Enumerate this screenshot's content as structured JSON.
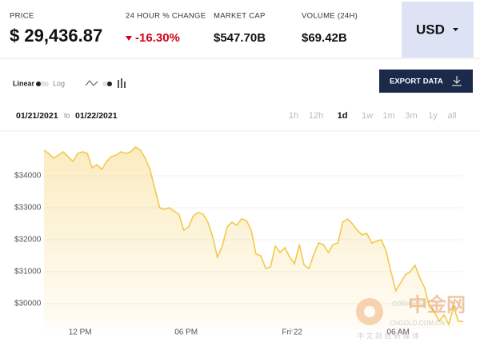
{
  "header": {
    "price_label": "PRICE",
    "price": "$ 29,436.87",
    "change_label": "24 HOUR % CHANGE",
    "change": "-16.30%",
    "market_cap_label": "MARKET CAP",
    "market_cap": "$547.70B",
    "volume_label": "VOLUME (24H)",
    "volume": "$69.42B",
    "currency": "USD"
  },
  "controls": {
    "scale_linear": "Linear",
    "scale_log": "Log",
    "export": "EXPORT DATA",
    "date_from": "01/21/2021",
    "date_to_word": "to",
    "date_to": "01/22/2021",
    "ranges": [
      "1h",
      "12h",
      "1d",
      "1w",
      "1m",
      "3m",
      "1y",
      "all"
    ],
    "active_range": 2
  },
  "watermark": {
    "brand": "中金网",
    "site": "CNGOLD.COM.CN",
    "slogan": "中 文 财 经 新 媒 体",
    "source": "coindesk"
  },
  "chart_data": {
    "type": "area",
    "color": "#f2c94c",
    "values": [
      34800,
      34700,
      34550,
      34650,
      34750,
      34600,
      34450,
      34700,
      34750,
      34700,
      34250,
      34350,
      34200,
      34450,
      34600,
      34650,
      34750,
      34700,
      34750,
      34900,
      34800,
      34550,
      34200,
      33600,
      33000,
      32950,
      33000,
      32900,
      32800,
      32300,
      32400,
      32750,
      32850,
      32800,
      32550,
      32100,
      31450,
      31800,
      32400,
      32550,
      32450,
      32650,
      32600,
      32300,
      31550,
      31500,
      31100,
      31150,
      31800,
      31600,
      31750,
      31450,
      31250,
      31850,
      31200,
      31100,
      31550,
      31900,
      31850,
      31600,
      31850,
      31900,
      32550,
      32650,
      32500,
      32300,
      32150,
      32200,
      31900,
      31950,
      32000,
      31650,
      31000,
      30400,
      30650,
      30900,
      31000,
      31200,
      30800,
      30500,
      29900,
      29750,
      29450,
      29650,
      29350,
      29900,
      29450,
      29436.87
    ],
    "xlim": [
      0,
      87
    ],
    "xticks": [
      {
        "value": 7.5,
        "label": "12 PM"
      },
      {
        "value": 29.5,
        "label": "06 PM"
      },
      {
        "value": 51.5,
        "label": "Fri 22"
      },
      {
        "value": 73.5,
        "label": "06 AM"
      }
    ],
    "ylim": [
      29200,
      35400
    ],
    "yticks": [
      {
        "value": 30000,
        "label": "$30000"
      },
      {
        "value": 31000,
        "label": "$31000"
      },
      {
        "value": 32000,
        "label": "$32000"
      },
      {
        "value": 33000,
        "label": "$33000"
      },
      {
        "value": 34000,
        "label": "$34000"
      }
    ],
    "grid": true
  }
}
